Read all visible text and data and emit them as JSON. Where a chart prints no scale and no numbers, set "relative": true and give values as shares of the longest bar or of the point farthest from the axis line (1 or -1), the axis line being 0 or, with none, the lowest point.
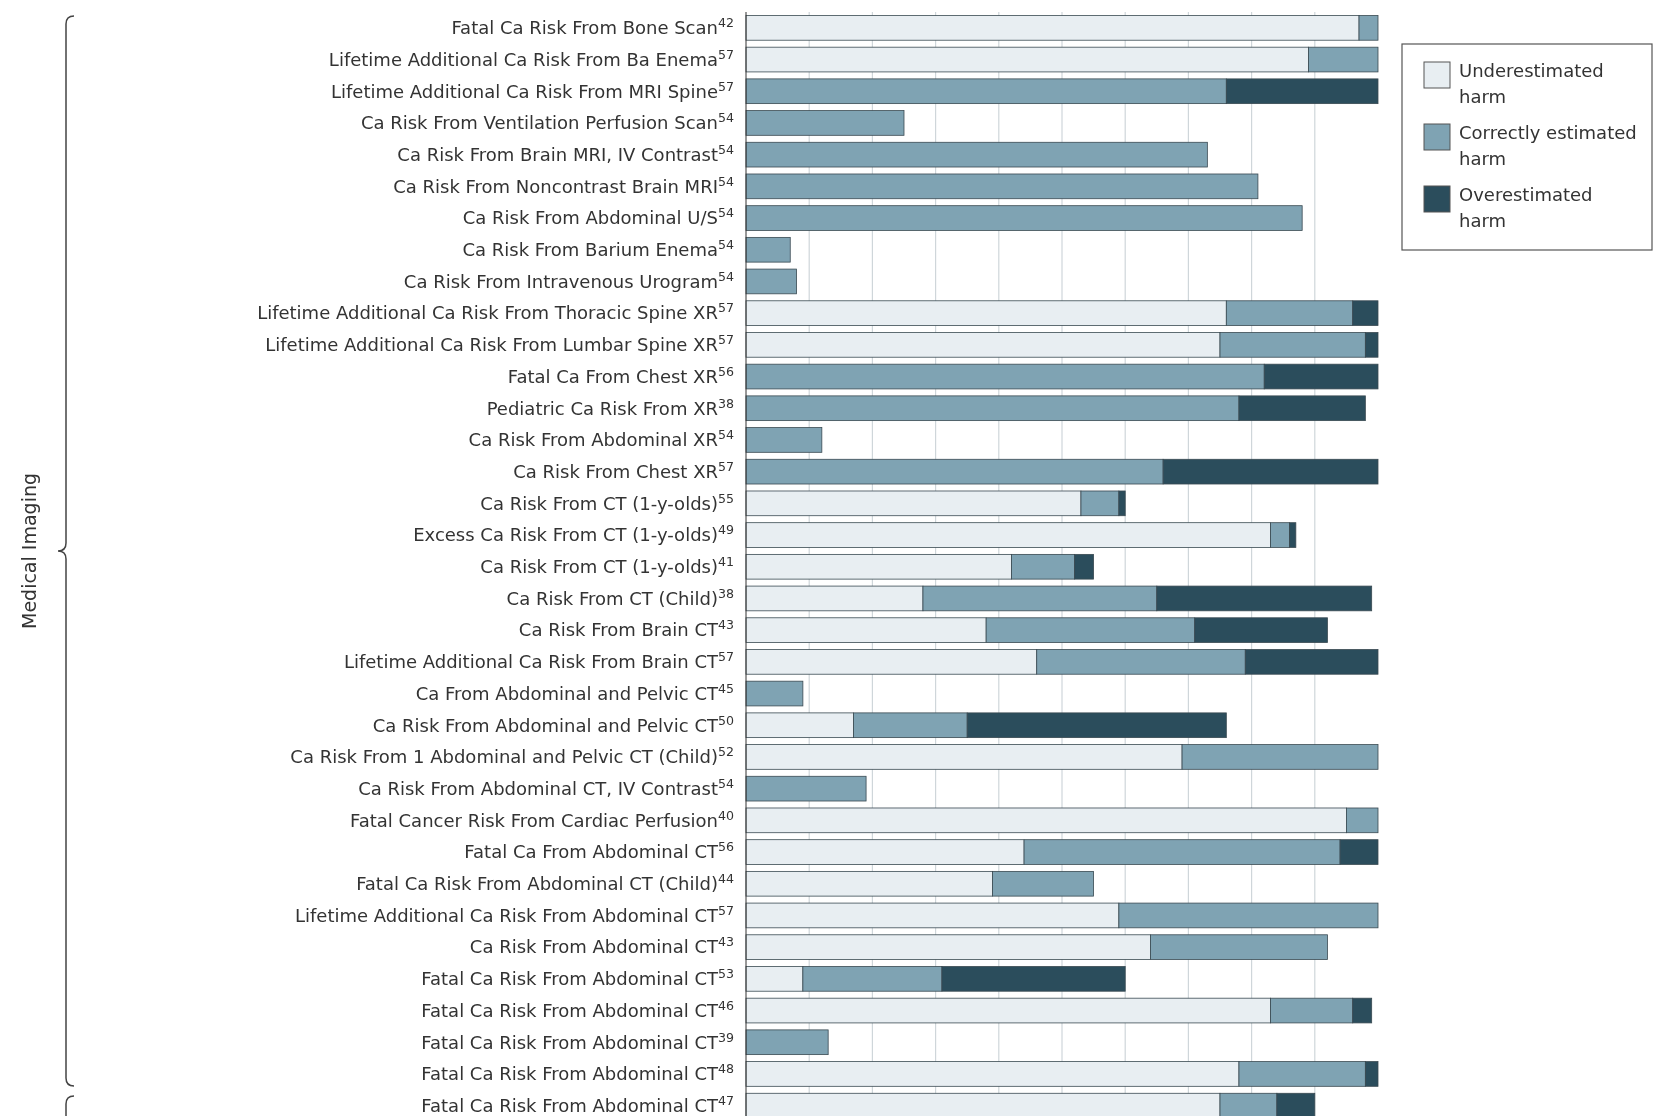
{
  "chart_data": {
    "type": "bar",
    "orientation": "horizontal",
    "stacked": true,
    "relative": true,
    "grid": "x",
    "legend": "top right",
    "annotations": [
      "Medical Imaging"
    ],
    "categories": [
      "Fatal Ca Risk From Bone Scan$^{42}$",
      "Lifetime Additional Ca Risk From Ba Enema$^{57}$",
      "Lifetime Additional Ca Risk From MRI Spine$^{57}$",
      "Ca Risk From Ventilation Perfusion Scan$^{54}$",
      "Ca Risk From Brain MRI, IV Contrast$^{54}$",
      "Ca Risk From Noncontrast Brain MRI$^{54}$",
      "Ca Risk From Abdominal U/S$^{54}$",
      "Ca Risk From Barium Enema$^{54}$",
      "Ca Risk From Intravenous Urogram$^{54}$",
      "Lifetime Additional Ca Risk From Thoracic Spine XR$^{57}$",
      "Lifetime Additional Ca Risk From Lumbar Spine XR$^{57}$",
      "Fatal Ca From Chest XR$^{56}$",
      "Pediatric Ca Risk From XR$^{38}$",
      "Ca Risk From Abdominal XR$^{54}$",
      "Ca Risk From Chest XR$^{57}$",
      "Ca Risk From CT (1-y-olds)$^{55}$",
      "Excess Ca Risk From CT (1-y-olds)$^{49}$",
      "Ca Risk From CT (1-y-olds)$^{41}$",
      "Ca Risk From CT (Child)$^{38}$",
      "Ca Risk From Brain CT$^{43}$",
      "Lifetime Additional Ca Risk From Brain CT$^{57}$",
      "Ca From Abdominal and Pelvic CT$^{45}$",
      "Ca Risk From Abdominal and Pelvic CT$^{50}$",
      "Ca Risk From 1 Abdominal and Pelvic CT (Child)$^{52}$",
      "Ca Risk From Abdominal CT, IV Contrast$^{54}$",
      "Fatal Cancer Risk From Cardiac Perfusion$^{40}$",
      "Fatal Ca From Abdominal CT$^{56}$",
      "Fatal Ca Risk From Abdominal CT (Child)$^{44}$",
      "Lifetime Additional Ca Risk From Abdominal CT$^{57}$",
      "Ca Risk From Abdominal CT$^{43}$",
      "Fatal Ca Risk From Abdominal CT$^{53}$",
      "Fatal Ca Risk From Abdominal CT$^{46}$",
      "Fatal Ca Risk From Abdominal CT$^{39}$",
      "Fatal Ca Risk From Abdominal CT$^{48}$",
      "Fatal Ca Risk From Abdominal CT$^{47}$"
    ],
    "series": [
      {
        "name": "Underestimated harm",
        "color": "#e8eef2",
        "values": [
          0.97,
          0.89,
          0,
          0,
          0,
          0,
          0,
          0,
          0,
          0.76,
          0.75,
          0,
          0,
          0,
          0,
          0.53,
          0.83,
          0.42,
          0.28,
          0.38,
          0.46,
          0,
          0.17,
          0.69,
          0,
          0.95,
          0.44,
          0.39,
          0.59,
          0.64,
          0.09,
          0.83,
          0,
          0.78,
          0.75
        ]
      },
      {
        "name": "Correctly estimated harm",
        "color": "#7fa3b3",
        "values": [
          0.03,
          0.11,
          0.76,
          0.25,
          0.73,
          0.81,
          0.88,
          0.07,
          0.08,
          0.2,
          0.23,
          0.82,
          0.78,
          0.12,
          0.66,
          0.06,
          0.03,
          0.1,
          0.37,
          0.33,
          0.33,
          0.09,
          0.18,
          0.31,
          0.19,
          0.05,
          0.5,
          0.16,
          0.41,
          0.28,
          0.22,
          0.13,
          0.13,
          0.2,
          0.09
        ]
      },
      {
        "name": "Overestimated harm",
        "color": "#2b4d5c",
        "values": [
          0,
          0,
          0.24,
          0,
          0,
          0,
          0,
          0,
          0,
          0.04,
          0.02,
          0.18,
          0.2,
          0,
          0.34,
          0.01,
          0.01,
          0.03,
          0.34,
          0.21,
          0.21,
          0,
          0.41,
          0,
          0,
          0,
          0.06,
          0,
          0,
          0,
          0.29,
          0.03,
          0,
          0.02,
          0.06
        ]
      }
    ]
  }
}
